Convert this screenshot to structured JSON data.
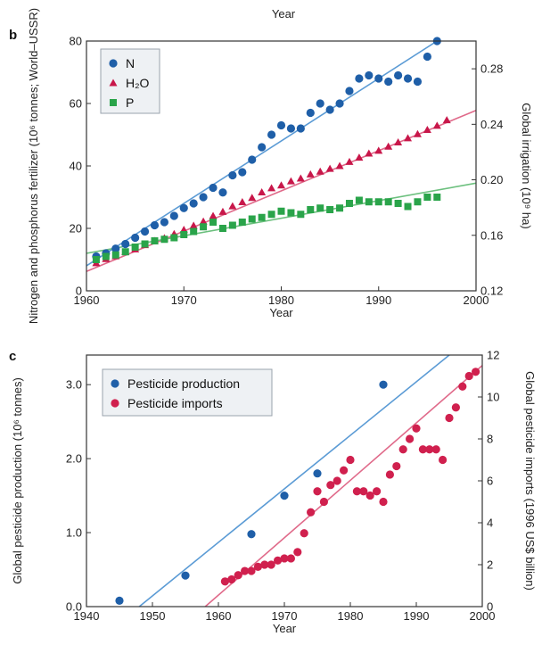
{
  "top_label": "Year",
  "chart_data": [
    {
      "panel": "b",
      "type": "scatter",
      "xlabel": "Year",
      "ylabel": "Nitrogen and phosphorus fertilizer (10⁶ tonnes; World–USSR)",
      "y2label": "Global irrigation (10⁹ ha)",
      "xlim": [
        1960,
        2000
      ],
      "ylim": [
        0,
        80
      ],
      "y2lim": [
        0.12,
        0.3
      ],
      "xticks": [
        "1960",
        "1970",
        "1980",
        "1990",
        "2000"
      ],
      "yticks": [
        "0",
        "20",
        "40",
        "60",
        "80"
      ],
      "y2ticks": [
        "0.12",
        "0.16",
        "0.20",
        "0.24",
        "0.28"
      ],
      "legend_position": "top-left",
      "series": [
        {
          "name": "N",
          "marker": "circle",
          "color": "#1f5fa8",
          "axis": "left",
          "x": [
            1961,
            1962,
            1963,
            1964,
            1965,
            1966,
            1967,
            1968,
            1969,
            1970,
            1971,
            1972,
            1973,
            1974,
            1975,
            1976,
            1977,
            1978,
            1979,
            1980,
            1981,
            1982,
            1983,
            1984,
            1985,
            1986,
            1987,
            1988,
            1989,
            1990,
            1991,
            1992,
            1993,
            1994,
            1995,
            1996
          ],
          "y": [
            11,
            12,
            13.5,
            15,
            17,
            19,
            21,
            22,
            24,
            26.5,
            28,
            30,
            33,
            31.5,
            37,
            38,
            42,
            46,
            50,
            53,
            52,
            52,
            57,
            60,
            58,
            60,
            64,
            68,
            69,
            68,
            67,
            69,
            68,
            67,
            75,
            80
          ],
          "fit": [
            [
              1960,
              8
            ],
            [
              1996,
              80
            ]
          ]
        },
        {
          "name": "H₂O",
          "marker": "triangle",
          "color": "#c8174a",
          "axis": "right",
          "x": [
            1961,
            1962,
            1963,
            1964,
            1965,
            1966,
            1967,
            1968,
            1969,
            1970,
            1971,
            1972,
            1973,
            1974,
            1975,
            1976,
            1977,
            1978,
            1979,
            1980,
            1981,
            1982,
            1983,
            1984,
            1985,
            1986,
            1987,
            1988,
            1989,
            1990,
            1991,
            1992,
            1993,
            1994,
            1995,
            1996,
            1997
          ],
          "y": [
            0.14,
            0.143,
            0.145,
            0.148,
            0.15,
            0.153,
            0.156,
            0.158,
            0.161,
            0.164,
            0.167,
            0.17,
            0.174,
            0.177,
            0.181,
            0.184,
            0.187,
            0.191,
            0.194,
            0.196,
            0.199,
            0.201,
            0.204,
            0.206,
            0.208,
            0.21,
            0.213,
            0.216,
            0.219,
            0.221,
            0.224,
            0.227,
            0.23,
            0.233,
            0.236,
            0.239,
            0.243
          ],
          "fit": [
            [
              1960,
              0.134
            ],
            [
              2000,
              0.25
            ]
          ]
        },
        {
          "name": "P",
          "marker": "square",
          "color": "#2aa44a",
          "axis": "left",
          "x": [
            1961,
            1962,
            1963,
            1964,
            1965,
            1966,
            1967,
            1968,
            1969,
            1970,
            1971,
            1972,
            1973,
            1974,
            1975,
            1976,
            1977,
            1978,
            1979,
            1980,
            1981,
            1982,
            1983,
            1984,
            1985,
            1986,
            1987,
            1988,
            1989,
            1990,
            1991,
            1992,
            1993,
            1994,
            1995,
            1996
          ],
          "y": [
            10,
            11,
            11.5,
            12.5,
            14,
            15,
            16,
            16.5,
            17,
            18,
            19,
            20.5,
            22,
            20,
            21,
            22,
            23,
            23.5,
            24.5,
            25.5,
            25,
            24.5,
            26,
            26.5,
            26,
            26.5,
            28,
            29,
            28.5,
            28.5,
            28.5,
            28,
            27,
            28.5,
            30,
            30
          ],
          "fit": [
            [
              1960,
              12
            ],
            [
              2000,
              34.5
            ]
          ]
        }
      ]
    },
    {
      "panel": "c",
      "type": "scatter",
      "xlabel": "Year",
      "ylabel": "Global pesticide production (10⁶ tonnes)",
      "y2label": "Global pesticide imports (1996 US$ billion)",
      "xlim": [
        1940,
        2000
      ],
      "ylim": [
        0,
        3.4
      ],
      "y2lim": [
        0,
        12
      ],
      "xticks": [
        "1940",
        "1950",
        "1960",
        "1970",
        "1980",
        "1990",
        "2000"
      ],
      "yticks": [
        "0.0",
        "1.0",
        "2.0",
        "3.0"
      ],
      "y2ticks": [
        "0",
        "2",
        "4",
        "6",
        "8",
        "10",
        "12"
      ],
      "legend_position": "top-left",
      "series": [
        {
          "name": "Pesticide production",
          "marker": "circle",
          "color": "#1f5fa8",
          "axis": "left",
          "x": [
            1945,
            1955,
            1965,
            1970,
            1975,
            1985
          ],
          "y": [
            0.08,
            0.42,
            0.98,
            1.5,
            1.8,
            3.0
          ],
          "fit": [
            [
              1948,
              0
            ],
            [
              1995,
              3.4
            ]
          ]
        },
        {
          "name": "Pesticide imports",
          "marker": "circle",
          "color": "#d0204e",
          "axis": "right",
          "x": [
            1961,
            1962,
            1963,
            1964,
            1965,
            1966,
            1967,
            1968,
            1969,
            1970,
            1971,
            1972,
            1973,
            1974,
            1975,
            1976,
            1977,
            1978,
            1979,
            1980,
            1981,
            1982,
            1983,
            1984,
            1985,
            1986,
            1987,
            1988,
            1989,
            1990,
            1991,
            1992,
            1993,
            1994,
            1995,
            1996,
            1997,
            1998,
            1999
          ],
          "y": [
            1.2,
            1.3,
            1.5,
            1.7,
            1.7,
            1.9,
            2.0,
            2.0,
            2.2,
            2.3,
            2.3,
            2.6,
            3.5,
            4.5,
            5.5,
            5.0,
            5.8,
            6.0,
            6.5,
            7.0,
            5.5,
            5.5,
            5.3,
            5.5,
            5.0,
            6.3,
            6.7,
            7.5,
            8.0,
            8.5,
            7.5,
            7.5,
            7.5,
            7.0,
            9.0,
            9.5,
            10.5,
            11.0,
            11.2
          ],
          "fit": [
            [
              1958,
              0
            ],
            [
              2000,
              11.5
            ]
          ]
        }
      ]
    }
  ]
}
